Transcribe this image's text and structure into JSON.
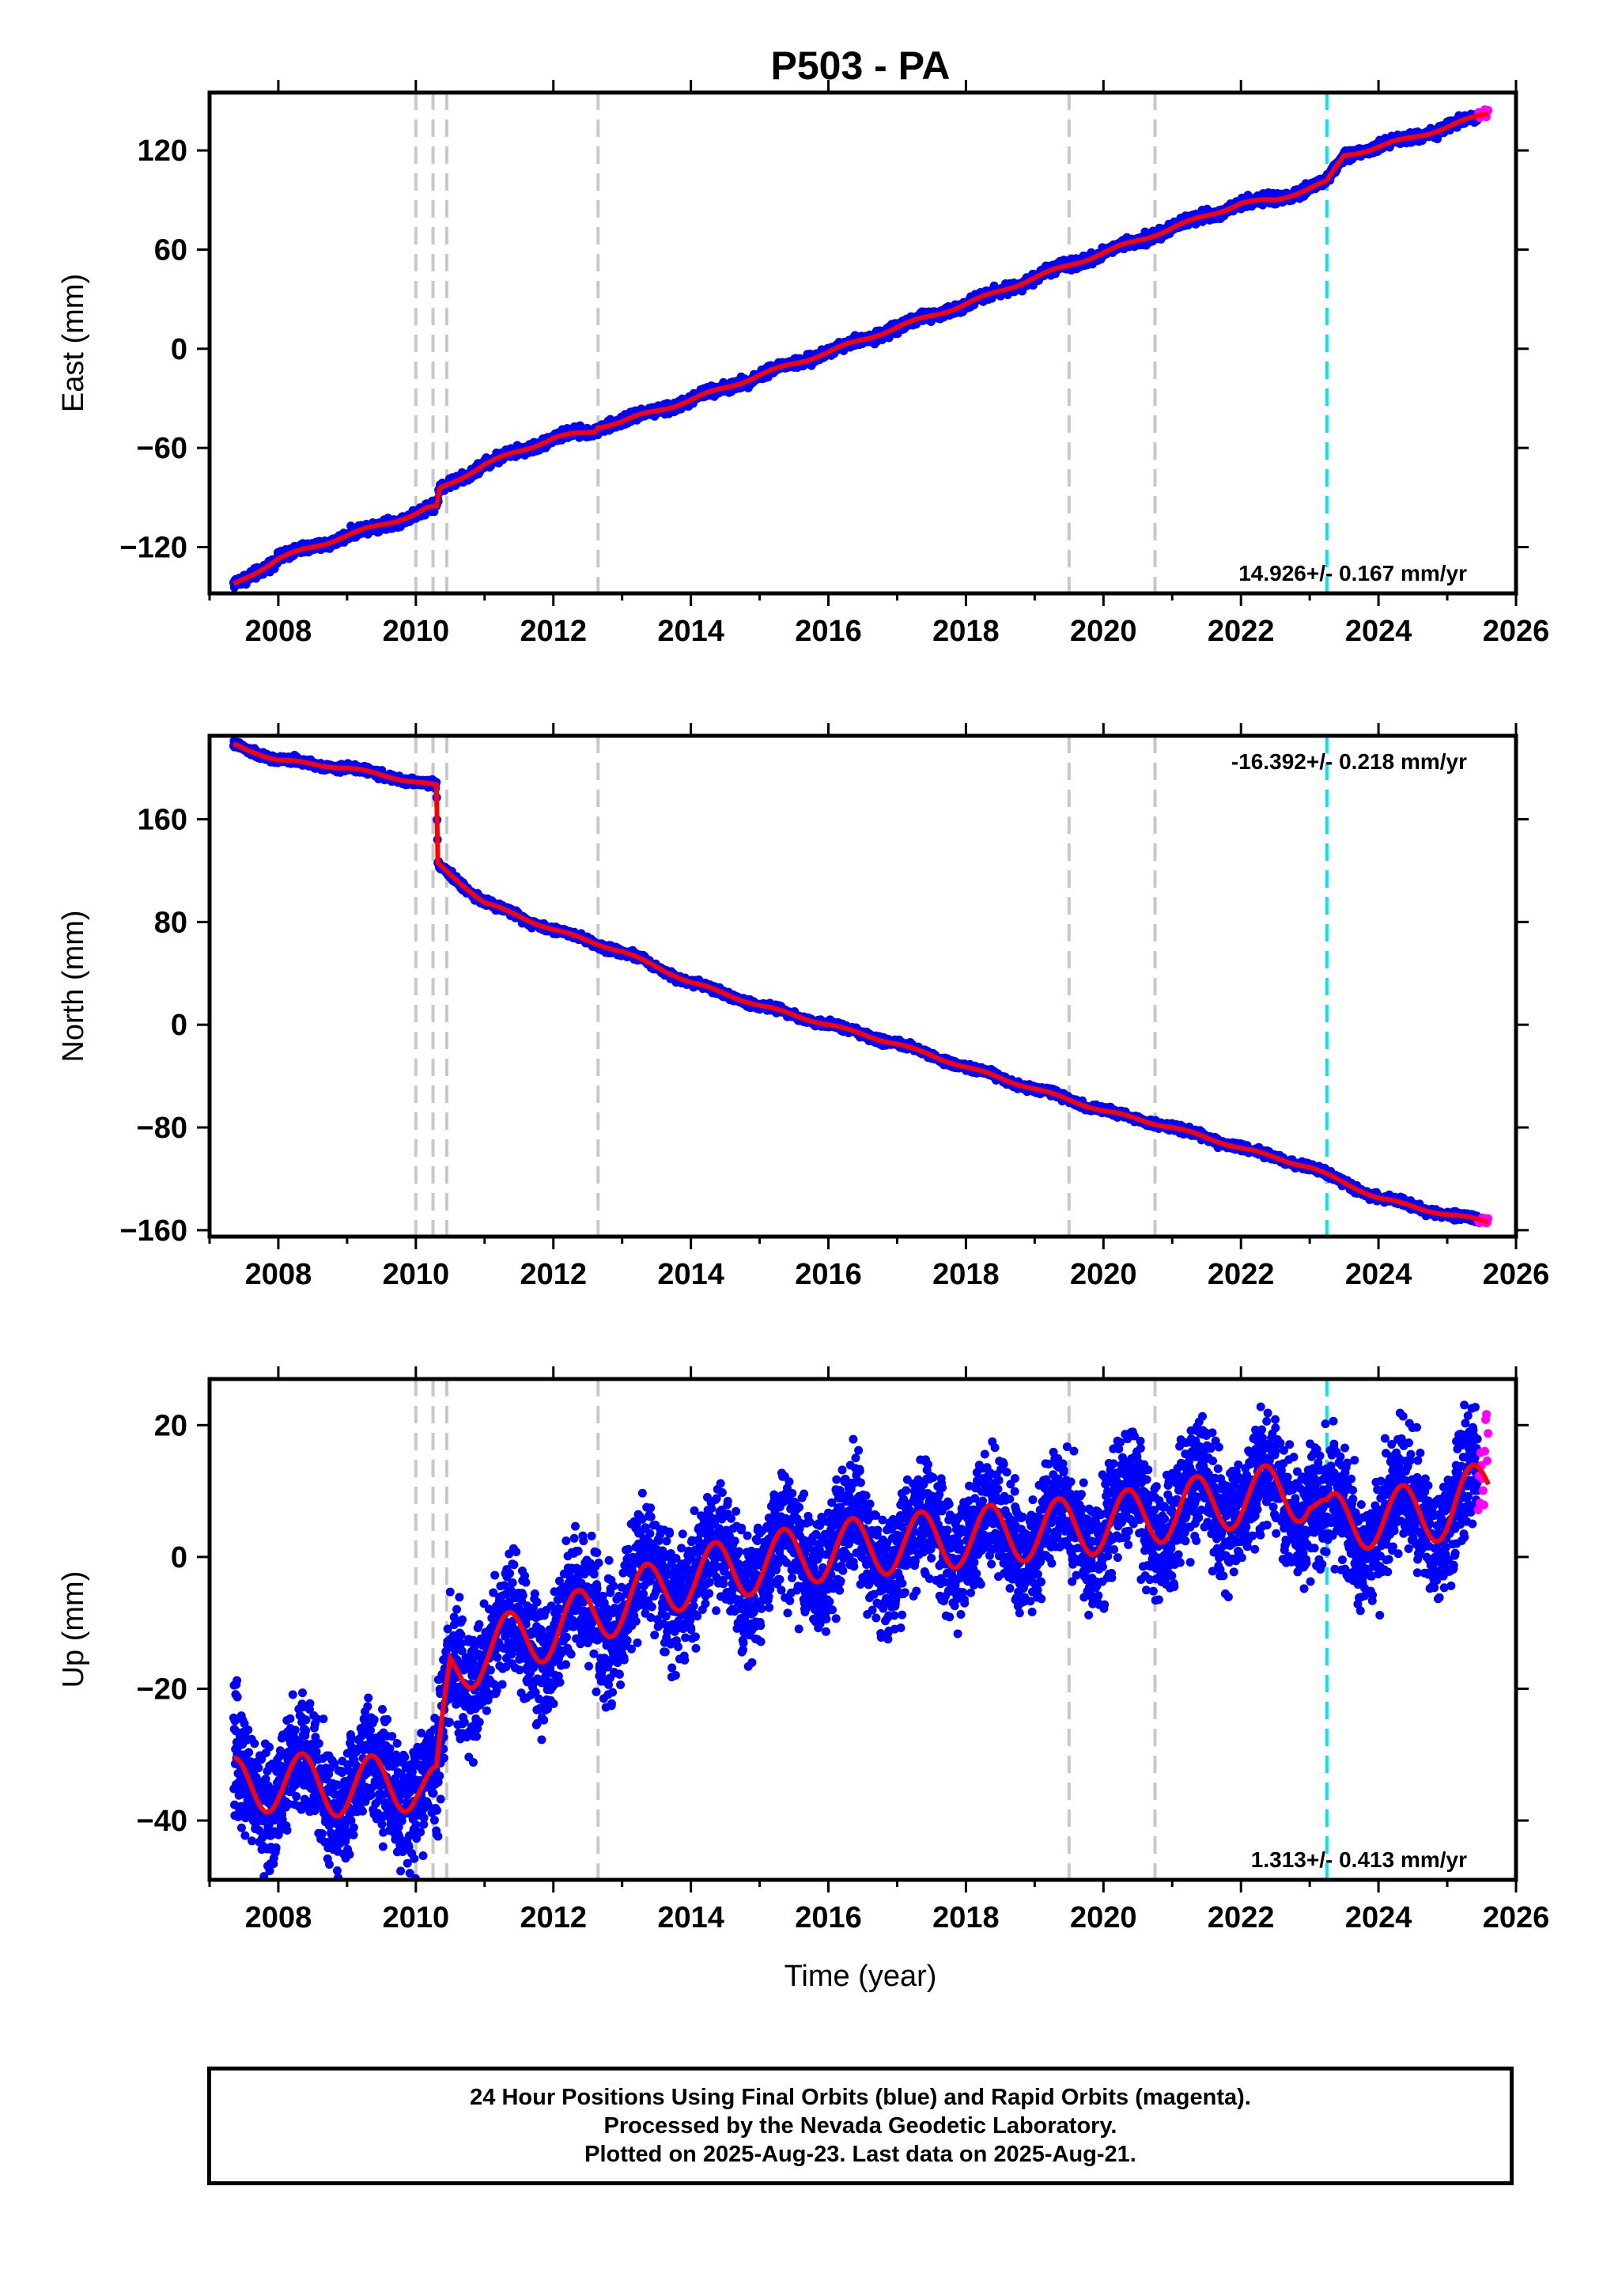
{
  "title": "P503 - PA",
  "xlabel": "Time (year)",
  "footer": {
    "line1": "24 Hour Positions Using Final Orbits (blue) and Rapid Orbits (magenta).",
    "line2": "Processed by the Nevada Geodetic Laboratory.",
    "line3": "Plotted on 2025-Aug-23. Last data on 2025-Aug-21."
  },
  "colors": {
    "final_orbits": "#0000ff",
    "rapid_orbits": "#ff00ff",
    "model_fit": "#ff0000",
    "event_lines": "#c8c8c8",
    "highlight_event": "#00e5ee"
  },
  "chart_data": [
    {
      "type": "scatter",
      "component": "east",
      "ylabel": "East (mm)",
      "xlim": [
        2007.0,
        2026.0
      ],
      "ylim": [
        -148,
        155
      ],
      "xticks": [
        2008,
        2010,
        2012,
        2014,
        2016,
        2018,
        2020,
        2022,
        2024,
        2026
      ],
      "yticks": [
        -120,
        -60,
        0,
        60,
        120
      ],
      "rate_label": "14.926+/- 0.167 mm/yr",
      "rate_position": "bottom-right",
      "grid": false,
      "series": [
        {
          "x": [
            2007.35,
            2008.0,
            2009.0,
            2010.0,
            2010.15,
            2010.3,
            2010.35,
            2011.0,
            2012.0,
            2012.6,
            2012.65,
            2013.0,
            2014.0,
            2015.0,
            2016.0,
            2017.0,
            2018.0,
            2019.0,
            2020.0,
            2021.0,
            2022.0,
            2022.5,
            2023.2,
            2023.25,
            2023.5,
            2024.0,
            2025.0,
            2025.6
          ],
          "y": [
            -143,
            -127,
            -113,
            -100,
            -97,
            -96,
            -85,
            -70,
            -54,
            -50,
            -47,
            -44,
            -31,
            -16,
            -2,
            13,
            27,
            43,
            58,
            73,
            88,
            90,
            100,
            101,
            117,
            122,
            134,
            143
          ]
        }
      ],
      "events": [
        2010.0,
        2010.25,
        2010.45,
        2012.65,
        2019.5,
        2020.75
      ],
      "highlight_event": 2023.25
    },
    {
      "type": "scatter",
      "component": "north",
      "ylabel": "North (mm)",
      "xlim": [
        2007.0,
        2026.0
      ],
      "ylim": [
        -165,
        225
      ],
      "xticks": [
        2008,
        2010,
        2012,
        2014,
        2016,
        2018,
        2020,
        2022,
        2024,
        2026
      ],
      "yticks": [
        -160,
        -80,
        0,
        80,
        160
      ],
      "rate_label": "-16.392+/- 0.218 mm/yr",
      "rate_position": "top-right",
      "grid": false,
      "series": [
        {
          "x": [
            2007.35,
            2008.0,
            2009.0,
            2010.0,
            2010.3,
            2010.32,
            2011.0,
            2012.0,
            2013.0,
            2014.0,
            2015.0,
            2016.0,
            2017.0,
            2018.0,
            2019.0,
            2020.0,
            2021.0,
            2022.0,
            2023.0,
            2024.0,
            2025.0,
            2025.6
          ],
          "y": [
            218,
            206,
            200,
            189,
            186,
            125,
            95,
            74,
            57,
            33,
            15,
            0,
            -15,
            -33,
            -50,
            -67,
            -80,
            -96,
            -111,
            -135,
            -148,
            -153
          ]
        }
      ],
      "events": [
        2010.0,
        2010.25,
        2010.45,
        2012.65,
        2019.5,
        2020.75
      ],
      "highlight_event": 2023.25
    },
    {
      "type": "scatter",
      "component": "up",
      "ylabel": "Up (mm)",
      "xlim": [
        2007.0,
        2026.0
      ],
      "ylim": [
        -49,
        27
      ],
      "xticks": [
        2008,
        2010,
        2012,
        2014,
        2016,
        2018,
        2020,
        2022,
        2024,
        2026
      ],
      "yticks": [
        -40,
        -20,
        0,
        20
      ],
      "rate_label": "1.313+/- 0.413 mm/yr",
      "rate_position": "bottom-right",
      "grid": false,
      "series": [
        {
          "x": [
            2007.35,
            2008.0,
            2009.0,
            2010.0,
            2010.3,
            2010.5,
            2011.0,
            2012.0,
            2013.0,
            2014.0,
            2015.0,
            2016.0,
            2017.0,
            2018.0,
            2019.0,
            2020.0,
            2021.0,
            2022.0,
            2023.0,
            2023.25,
            2024.0,
            2025.0,
            2025.6
          ],
          "y": [
            -35,
            -34,
            -35,
            -34,
            -36,
            -18,
            -14,
            -11,
            -7,
            -3,
            -1,
            1,
            2,
            3,
            4,
            5,
            7,
            9,
            10,
            5,
            6,
            7,
            11
          ]
        }
      ],
      "events": [
        2010.0,
        2010.25,
        2010.45,
        2012.65,
        2019.5,
        2020.75
      ],
      "highlight_event": 2023.25
    }
  ]
}
